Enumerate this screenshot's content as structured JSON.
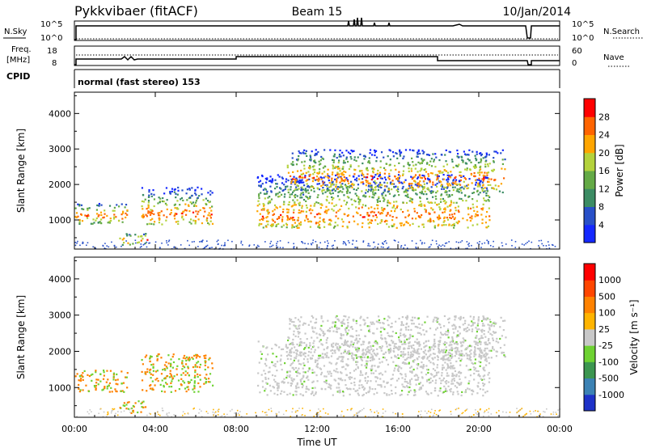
{
  "header": {
    "station": "Pykkvibaer (fitACF)",
    "beam": "Beam 15",
    "date": "10/Jan/2014"
  },
  "strips": {
    "nsky": {
      "label": "N.Sky",
      "right_label": "N.Search",
      "left_ticks": [
        "10^5",
        "10^0"
      ],
      "right_ticks": [
        "10^5",
        "10^0"
      ]
    },
    "freq": {
      "label_line1": "Freq.",
      "label_line2": "[MHz]",
      "right_label": "Nave",
      "left_ticks": [
        "18",
        "8"
      ],
      "right_ticks": [
        "60",
        "0"
      ]
    },
    "cpid": {
      "label": "CPID",
      "text": "normal (fast stereo) 153"
    }
  },
  "chart_data": [
    {
      "type": "heatmap",
      "name": "power-panel",
      "ylabel": "Slant Range [km]",
      "yticks": [
        "1000",
        "2000",
        "3000",
        "4000"
      ],
      "ytick_values": [
        1000,
        2000,
        3000,
        4000
      ],
      "ylim": [
        180,
        4600
      ],
      "xlim": [
        0,
        24
      ],
      "colorbar": {
        "label": "Power [dB]",
        "ticks": [
          "4",
          "8",
          "12",
          "16",
          "20",
          "24",
          "28"
        ],
        "colors": [
          "#1428ff",
          "#2850c8",
          "#3c8c64",
          "#64aa46",
          "#b4d23c",
          "#ffa500",
          "#ff6400",
          "#ff0000"
        ]
      }
    },
    {
      "type": "heatmap",
      "name": "velocity-panel",
      "ylabel": "Slant Range [km]",
      "yticks": [
        "1000",
        "2000",
        "3000",
        "4000"
      ],
      "ytick_values": [
        1000,
        2000,
        3000,
        4000
      ],
      "ylim": [
        180,
        4600
      ],
      "xlim": [
        0,
        24
      ],
      "colorbar": {
        "label": "Velocity [m s⁻¹]",
        "ticks": [
          "1000",
          "500",
          "100",
          "25",
          "-25",
          "-100",
          "-500",
          "-1000"
        ],
        "colors": [
          "#1e32c8",
          "#3c82b4",
          "#3c9650",
          "#6ed232",
          "#c8c8c8",
          "#ffb400",
          "#ff8200",
          "#ff4600",
          "#ff0000"
        ]
      }
    }
  ],
  "xaxis": {
    "label": "Time UT",
    "ticks": [
      "00:00",
      "04:00",
      "08:00",
      "12:00",
      "16:00",
      "20:00",
      "00:00"
    ],
    "tick_hours": [
      0,
      4,
      8,
      12,
      16,
      20,
      24
    ]
  }
}
